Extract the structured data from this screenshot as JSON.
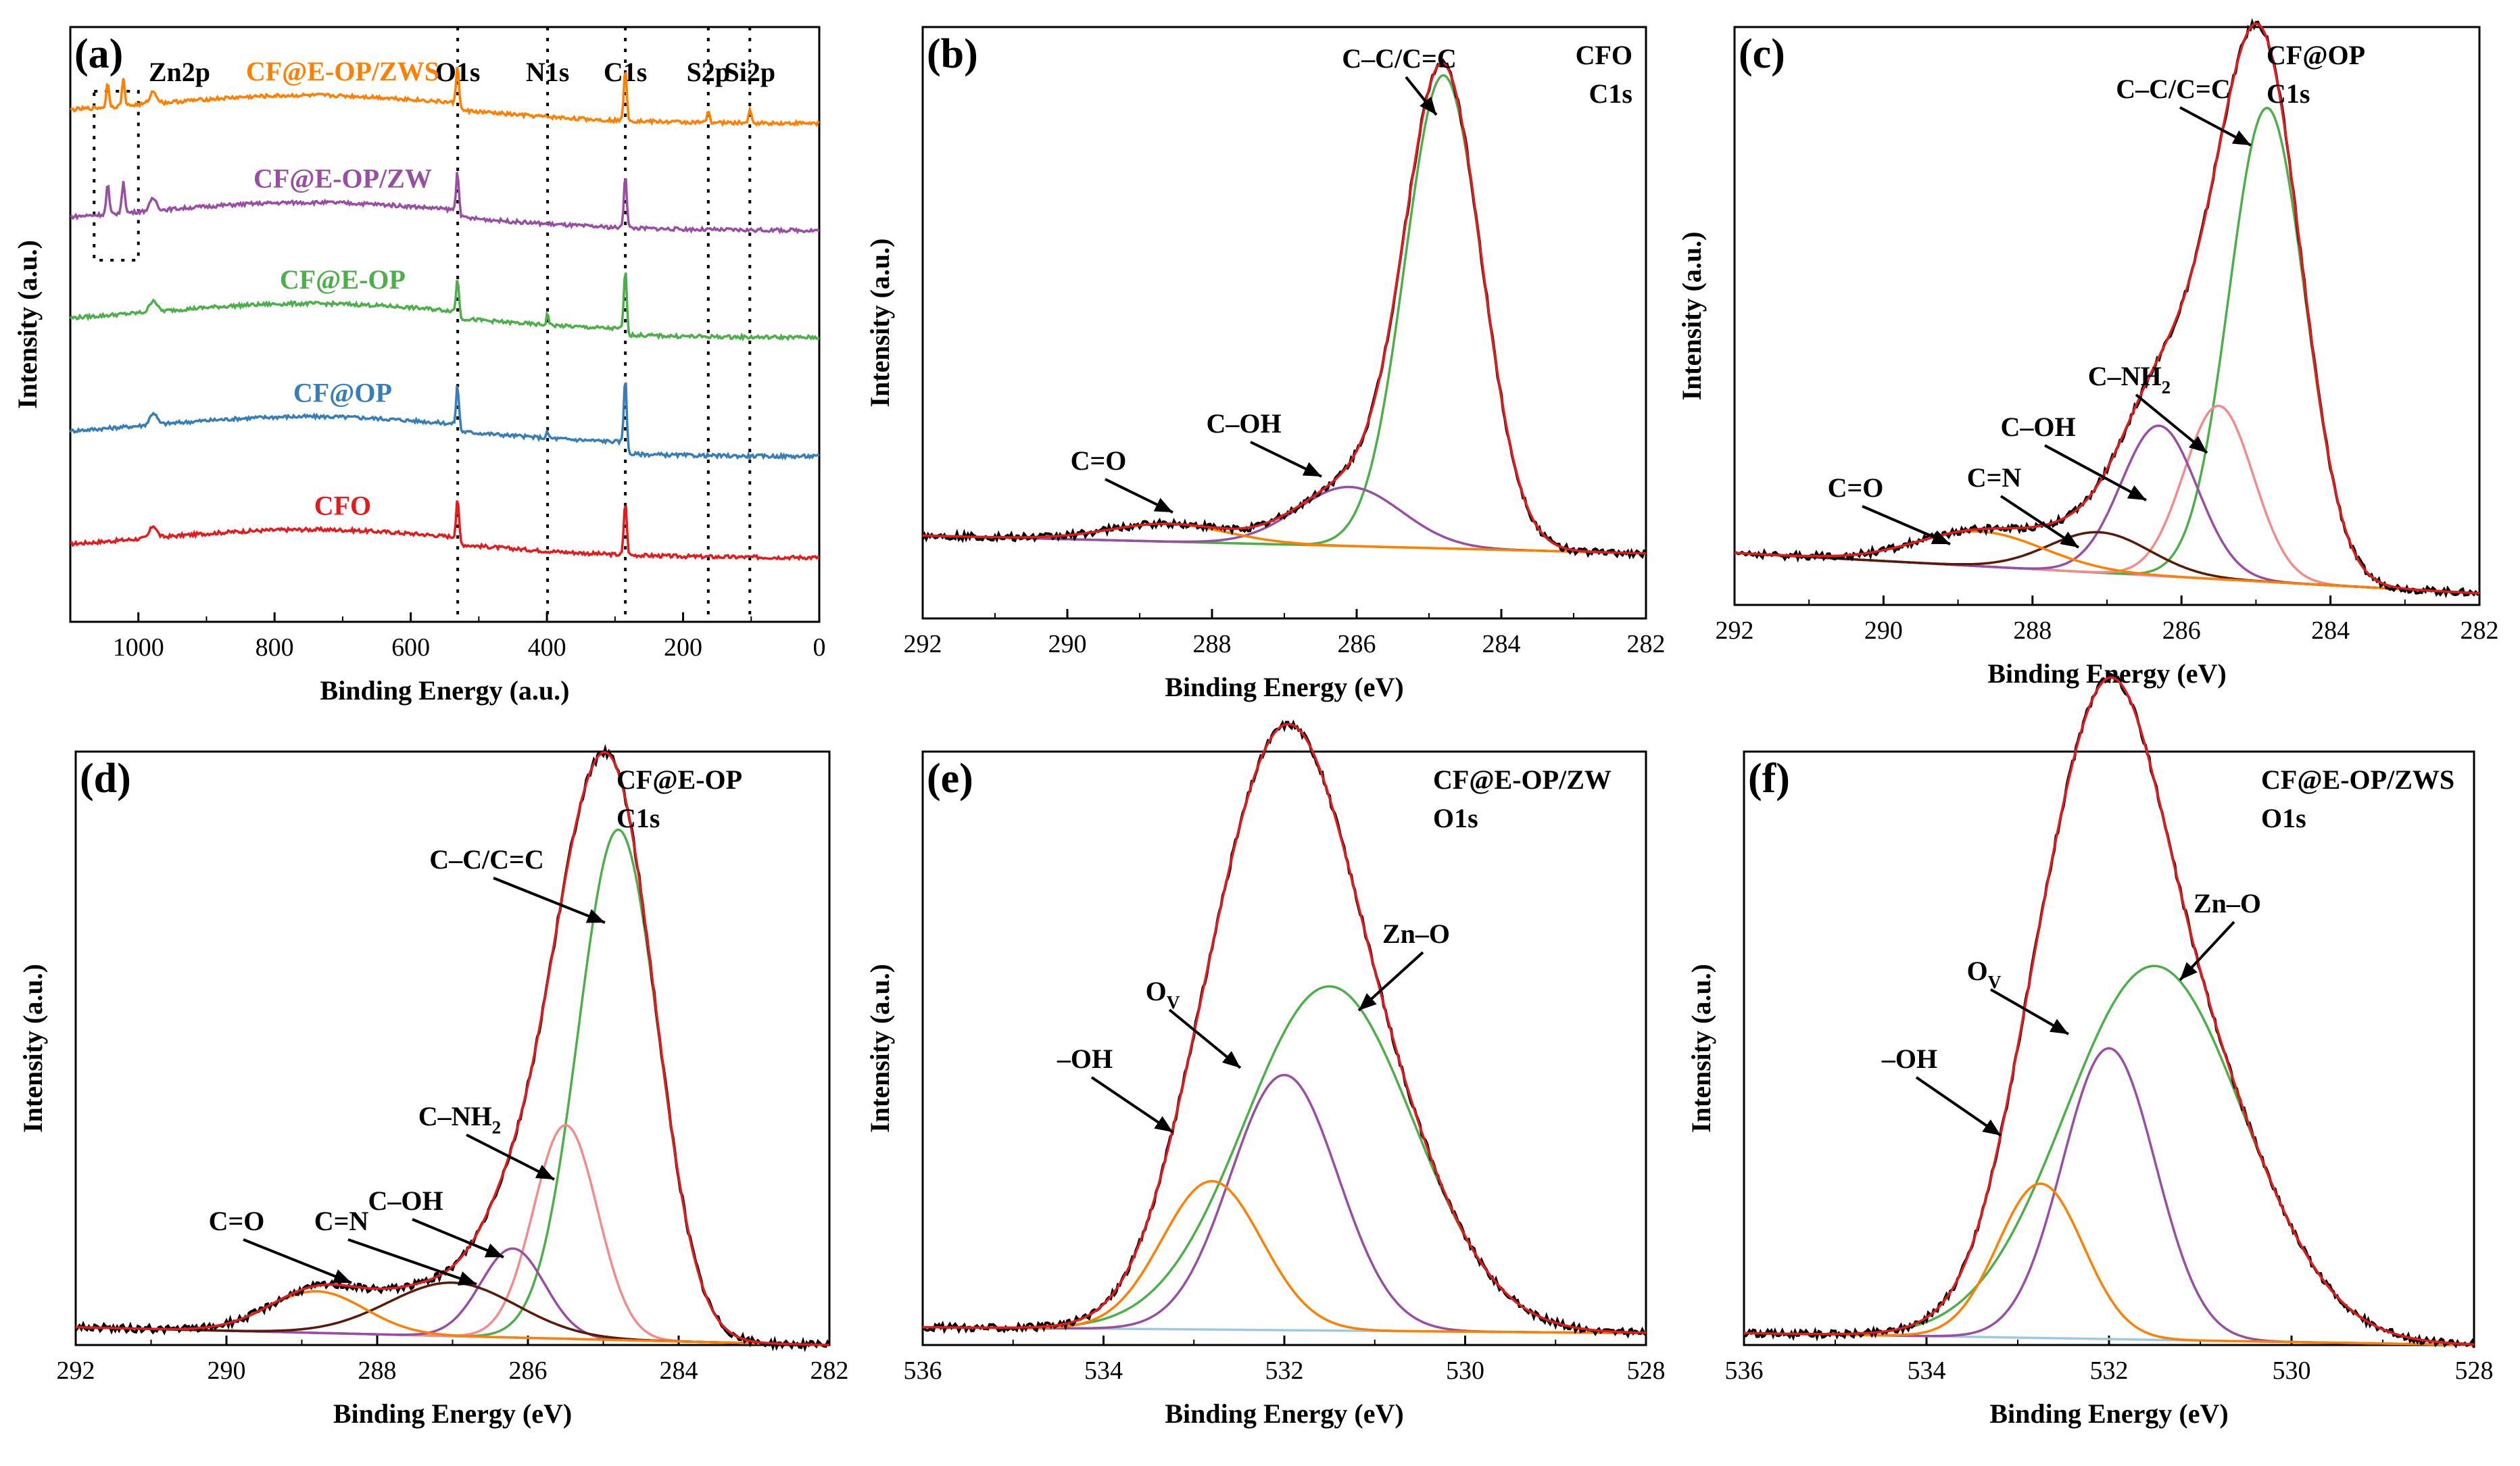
{
  "figure": {
    "colors": {
      "frame": "#000000",
      "raw": "#000000",
      "envelope": "#e41a1c",
      "green": "#4daf4a",
      "purple": "#984ea3",
      "orange": "#ff7f00",
      "blue": "#377eb8",
      "pink": "#f28c8c",
      "brown": "#5a1a0a",
      "baseline_gold": "#d4a017",
      "baseline_pink": "#ee82ee",
      "baseline_blue": "#9ecae1"
    }
  },
  "chart_data": [
    {
      "id": "a",
      "type": "line",
      "panel_label": "(a)",
      "xlabel": "Binding Energy (a.u.)",
      "ylabel": "Intensity (a.u.)",
      "xlim": [
        1100,
        0
      ],
      "x_ticks": [
        1000,
        800,
        600,
        400,
        200,
        0
      ],
      "x_tick_labels": [
        "1000",
        "800",
        "600",
        "400",
        "200",
        "0"
      ],
      "peak_lines": [
        {
          "label": "Zn2p",
          "x": 1040
        },
        {
          "label": "O1s",
          "x": 531
        },
        {
          "label": "N1s",
          "x": 399
        },
        {
          "label": "C1s",
          "x": 284.8
        },
        {
          "label": "S2p",
          "x": 163
        },
        {
          "label": "Si2p",
          "x": 102
        }
      ],
      "series": [
        {
          "name": "CFO",
          "color": "#e41a1c",
          "offset": 0.12,
          "peaks": {
            "O1s": 0.07,
            "C1s": 0.09,
            "N1s": 0.0
          },
          "step": 0.0
        },
        {
          "name": "CF@OP",
          "color": "#377eb8",
          "offset": 0.31,
          "peaks": {
            "O1s": 0.07,
            "C1s": 0.11,
            "N1s": 0.01
          },
          "step": -0.02
        },
        {
          "name": "CF@E-OP",
          "color": "#4daf4a",
          "offset": 0.5,
          "peaks": {
            "O1s": 0.06,
            "C1s": 0.1,
            "N1s": 0.02
          },
          "step": -0.01
        },
        {
          "name": "CF@E-OP/ZW",
          "color": "#984ea3",
          "offset": 0.67,
          "peaks": {
            "O1s": 0.07,
            "C1s": 0.09,
            "N1s": 0.0,
            "Zn2p": 0.05
          },
          "step": 0.0
        },
        {
          "name": "CF@E-OP/ZWS",
          "color": "#ff7f00",
          "offset": 0.85,
          "peaks": {
            "O1s": 0.07,
            "C1s": 0.09,
            "N1s": 0.0,
            "Zn2p": 0.04,
            "S2p": 0.02,
            "Si2p": 0.02
          },
          "step": 0.0
        }
      ]
    },
    {
      "id": "b",
      "type": "line",
      "panel_label": "(b)",
      "sample": "CFO",
      "region": "C1s",
      "xlabel": "Binding Energy (eV)",
      "ylabel": "Intensity (a.u.)",
      "xlim": [
        292,
        282
      ],
      "x_ticks": [
        292,
        290,
        288,
        286,
        284,
        282
      ],
      "x_tick_labels": [
        "292",
        "290",
        "288",
        "286",
        "284",
        "282"
      ],
      "ylim": [
        0,
        1.0
      ],
      "baseline": {
        "color": "#d4a017",
        "start": 0.14,
        "end": 0.11
      },
      "components": [
        {
          "label": "C–C/C=C",
          "center": 284.8,
          "height": 0.8,
          "fwhm": 1.25,
          "color": "#4daf4a"
        },
        {
          "label": "C–OH",
          "center": 286.1,
          "height": 0.1,
          "fwhm": 1.7,
          "color": "#984ea3"
        },
        {
          "label": "C=O",
          "center": 288.6,
          "height": 0.03,
          "fwhm": 1.9,
          "color": "#ff7f00"
        }
      ],
      "annotations": [
        {
          "text": "C–C/C=C",
          "target": 0
        },
        {
          "text": "C–OH",
          "target": 1
        },
        {
          "text": "C=O",
          "target": 2
        }
      ]
    },
    {
      "id": "c",
      "type": "line",
      "panel_label": "(c)",
      "sample": "CF@OP",
      "region": "C1s",
      "xlabel": "Binding Energy (eV)",
      "ylabel": "Intensity (a.u.)",
      "xlim": [
        292,
        282
      ],
      "x_ticks": [
        292,
        290,
        288,
        286,
        284,
        282
      ],
      "x_tick_labels": [
        "292",
        "290",
        "288",
        "286",
        "284",
        "282"
      ],
      "ylim": [
        0,
        1.0
      ],
      "baseline": {
        "color": "#ee82ee",
        "start": 0.09,
        "end": 0.02
      },
      "components": [
        {
          "label": "C–C/C=C",
          "center": 284.85,
          "height": 0.82,
          "fwhm": 1.2,
          "color": "#4daf4a"
        },
        {
          "label": "C–NH2",
          "center": 285.5,
          "height": 0.3,
          "fwhm": 1.1,
          "color": "#f28c8c"
        },
        {
          "label": "C–OH",
          "center": 286.3,
          "height": 0.26,
          "fwhm": 1.2,
          "color": "#984ea3"
        },
        {
          "label": "C=N",
          "center": 287.1,
          "height": 0.07,
          "fwhm": 1.6,
          "color": "#5a1a0a"
        },
        {
          "label": "C=O",
          "center": 288.7,
          "height": 0.06,
          "fwhm": 2.0,
          "color": "#ff7f00"
        }
      ],
      "annotations": [
        {
          "text": "C–C/C=C",
          "target": 0
        },
        {
          "text": "C–NH",
          "sub": "2",
          "target": 1
        },
        {
          "text": "C–OH",
          "target": 2
        },
        {
          "text": "C=N",
          "target": 3
        },
        {
          "text": "C=O",
          "target": 4
        }
      ]
    },
    {
      "id": "d",
      "type": "line",
      "panel_label": "(d)",
      "sample": "CF@E-OP",
      "region": "C1s",
      "xlabel": "Binding Energy (eV)",
      "ylabel": "Intensity (a.u.)",
      "xlim": [
        292,
        282
      ],
      "x_ticks": [
        292,
        290,
        288,
        286,
        284,
        282
      ],
      "x_tick_labels": [
        "292",
        "290",
        "288",
        "286",
        "284",
        "282"
      ],
      "ylim": [
        0,
        1.0
      ],
      "baseline": {
        "color": "#ee82ee",
        "start": 0.03,
        "end": 0.0
      },
      "components": [
        {
          "label": "C–C/C=C",
          "center": 284.8,
          "height": 0.86,
          "fwhm": 1.25,
          "color": "#4daf4a"
        },
        {
          "label": "C–NH2",
          "center": 285.5,
          "height": 0.36,
          "fwhm": 1.0,
          "color": "#f28c8c"
        },
        {
          "label": "C–OH",
          "center": 286.2,
          "height": 0.15,
          "fwhm": 1.0,
          "color": "#984ea3"
        },
        {
          "label": "C=N",
          "center": 287.0,
          "height": 0.09,
          "fwhm": 2.0,
          "color": "#5a1a0a"
        },
        {
          "label": "C=O",
          "center": 288.8,
          "height": 0.07,
          "fwhm": 1.5,
          "color": "#ff7f00"
        }
      ],
      "annotations": [
        {
          "text": "C–C/C=C",
          "target": 0
        },
        {
          "text": "C–NH",
          "sub": "2",
          "target": 1
        },
        {
          "text": "C–OH",
          "target": 2
        },
        {
          "text": "C=N",
          "target": 3
        },
        {
          "text": "C=O",
          "target": 4
        }
      ]
    },
    {
      "id": "e",
      "type": "line",
      "panel_label": "(e)",
      "sample": "CF@E-OP/ZW",
      "region": "O1s",
      "xlabel": "Binding Energy (eV)",
      "ylabel": "Intensity (a.u.)",
      "xlim": [
        536,
        528
      ],
      "x_ticks": [
        536,
        534,
        532,
        530,
        528
      ],
      "x_tick_labels": [
        "536",
        "534",
        "532",
        "530",
        "528"
      ],
      "ylim": [
        0,
        1.0
      ],
      "baseline": {
        "color": "#9ecae1",
        "start": 0.03,
        "end": 0.02
      },
      "components": [
        {
          "label": "Zn–O",
          "center": 531.5,
          "height": 0.58,
          "fwhm": 2.2,
          "color": "#4daf4a"
        },
        {
          "label": "OV",
          "center": 532.0,
          "height": 0.43,
          "fwhm": 1.4,
          "color": "#984ea3"
        },
        {
          "label": "–OH",
          "center": 532.8,
          "height": 0.25,
          "fwhm": 1.3,
          "color": "#ff7f00"
        }
      ],
      "annotations": [
        {
          "text": "Zn–O",
          "target": 0
        },
        {
          "text": "O",
          "sub": "V",
          "target": 1
        },
        {
          "text": "–OH",
          "target": 2
        }
      ]
    },
    {
      "id": "f",
      "type": "line",
      "panel_label": "(f)",
      "sample": "CF@E-OP/ZWS",
      "region": "O1s",
      "xlabel": "Binding Energy (eV)",
      "ylabel": "Intensity (a.u.)",
      "xlim": [
        536,
        528
      ],
      "x_ticks": [
        536,
        534,
        532,
        530,
        528
      ],
      "x_tick_labels": [
        "536",
        "534",
        "532",
        "530",
        "528"
      ],
      "ylim": [
        0,
        1.0
      ],
      "baseline": {
        "color": "#9ecae1",
        "start": 0.02,
        "end": 0.0
      },
      "components": [
        {
          "label": "Zn–O",
          "center": 531.5,
          "height": 0.63,
          "fwhm": 2.3,
          "color": "#4daf4a"
        },
        {
          "label": "OV",
          "center": 532.0,
          "height": 0.49,
          "fwhm": 1.2,
          "color": "#984ea3"
        },
        {
          "label": "–OH",
          "center": 532.75,
          "height": 0.26,
          "fwhm": 1.1,
          "color": "#ff7f00"
        }
      ],
      "annotations": [
        {
          "text": "Zn–O",
          "target": 0
        },
        {
          "text": "O",
          "sub": "V",
          "target": 1
        },
        {
          "text": "–OH",
          "target": 2
        }
      ]
    }
  ]
}
